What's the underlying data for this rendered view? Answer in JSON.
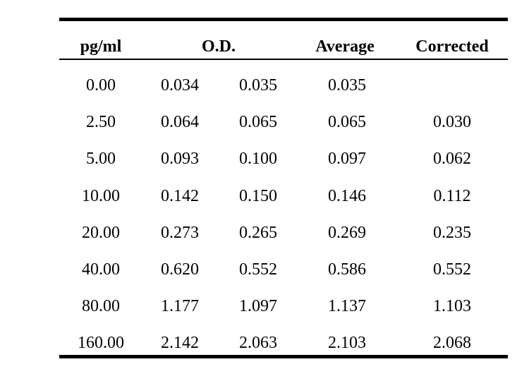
{
  "table": {
    "headers": {
      "pg_ml": "pg/ml",
      "od": "O.D.",
      "average": "Average",
      "corrected": "Corrected"
    },
    "rows": [
      {
        "pg_ml": "0.00",
        "od1": "0.034",
        "od2": "0.035",
        "average": "0.035",
        "corrected": ""
      },
      {
        "pg_ml": "2.50",
        "od1": "0.064",
        "od2": "0.065",
        "average": "0.065",
        "corrected": "0.030"
      },
      {
        "pg_ml": "5.00",
        "od1": "0.093",
        "od2": "0.100",
        "average": "0.097",
        "corrected": "0.062"
      },
      {
        "pg_ml": "10.00",
        "od1": "0.142",
        "od2": "0.150",
        "average": "0.146",
        "corrected": "0.112"
      },
      {
        "pg_ml": "20.00",
        "od1": "0.273",
        "od2": "0.265",
        "average": "0.269",
        "corrected": "0.235"
      },
      {
        "pg_ml": "40.00",
        "od1": "0.620",
        "od2": "0.552",
        "average": "0.586",
        "corrected": "0.552"
      },
      {
        "pg_ml": "80.00",
        "od1": "1.177",
        "od2": "1.097",
        "average": "1.137",
        "corrected": "1.103"
      },
      {
        "pg_ml": "160.00",
        "od1": "2.142",
        "od2": "2.063",
        "average": "2.103",
        "corrected": "2.068"
      }
    ]
  }
}
